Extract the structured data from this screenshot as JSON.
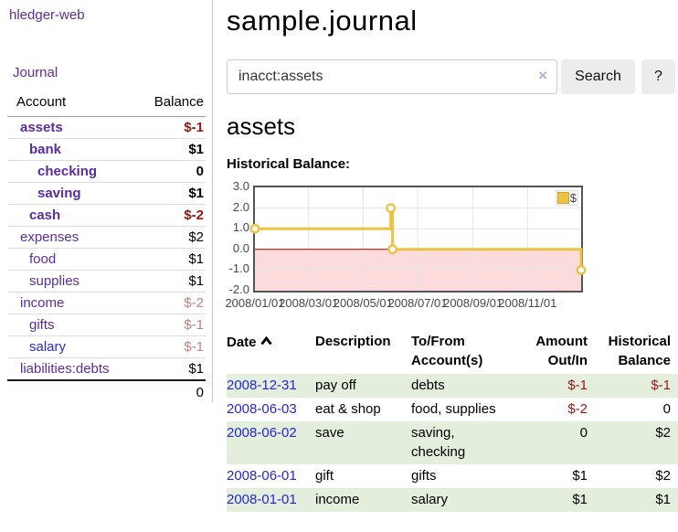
{
  "sidebar": {
    "app_title": "hledger-web",
    "nav": [
      {
        "label": "Journal"
      }
    ],
    "accounts_table": {
      "headers": [
        "Account",
        "Balance"
      ],
      "rows": [
        {
          "name": "assets",
          "level": 1,
          "bold": true,
          "balance": "$-1",
          "balance_style": "neg-strong"
        },
        {
          "name": "bank",
          "level": 2,
          "bold": true,
          "balance": "$1",
          "balance_style": ""
        },
        {
          "name": "checking",
          "level": 3,
          "bold": true,
          "balance": "0",
          "balance_style": ""
        },
        {
          "name": "saving",
          "level": 3,
          "bold": true,
          "balance": "$1",
          "balance_style": ""
        },
        {
          "name": "cash",
          "level": 2,
          "bold": true,
          "balance": "$-2",
          "balance_style": "neg-strong"
        },
        {
          "name": "expenses",
          "level": 1,
          "bold": false,
          "balance": "$2",
          "balance_style": ""
        },
        {
          "name": "food",
          "level": 2,
          "bold": false,
          "balance": "$1",
          "balance_style": ""
        },
        {
          "name": "supplies",
          "level": 2,
          "bold": false,
          "balance": "$1",
          "balance_style": ""
        },
        {
          "name": "income",
          "level": 1,
          "bold": false,
          "balance": "$-2",
          "balance_style": "neg-soft"
        },
        {
          "name": "gifts",
          "level": 2,
          "bold": false,
          "balance": "$-1",
          "balance_style": "neg-soft"
        },
        {
          "name": "salary",
          "level": 2,
          "bold": false,
          "balance": "$-1",
          "balance_style": "neg-soft",
          "link_color": "blue"
        },
        {
          "name": "liabilities:debts",
          "level": 1,
          "bold": false,
          "balance": "$1",
          "balance_style": ""
        }
      ],
      "total": "0"
    }
  },
  "header": {
    "title": "sample.journal"
  },
  "search": {
    "value": "inacct:assets",
    "clear_icon": "×",
    "button_label": "Search",
    "help_label": "?"
  },
  "account_page": {
    "heading": "assets",
    "chart_label": "Historical Balance:"
  },
  "chart_data": {
    "type": "line",
    "style": "step",
    "title": "Historical Balance:",
    "legend": [
      {
        "label": "$",
        "color": "#edc240"
      }
    ],
    "legend_position": "top-right",
    "grid": true,
    "ylim": [
      -2.0,
      3.0
    ],
    "yticks": [
      3.0,
      2.0,
      1.0,
      0.0,
      -1.0,
      -2.0
    ],
    "x_span_days": 365,
    "xticks": [
      {
        "label": "2008/01/01",
        "day": 0
      },
      {
        "label": "2008/03/01",
        "day": 60
      },
      {
        "label": "2008/05/01",
        "day": 121
      },
      {
        "label": "2008/07/01",
        "day": 182
      },
      {
        "label": "2008/09/01",
        "day": 244
      },
      {
        "label": "2008/11/01",
        "day": 305
      }
    ],
    "series": [
      {
        "name": "$",
        "color": "#edc240",
        "points": [
          {
            "date": "2008-01-01",
            "day": 0,
            "value": 1
          },
          {
            "date": "2008-06-01",
            "day": 152,
            "value": 2
          },
          {
            "date": "2008-06-03",
            "day": 154,
            "value": 0
          },
          {
            "date": "2008-12-31",
            "day": 365,
            "value": -1
          }
        ]
      }
    ],
    "zero_line_color": "#8b0000",
    "negative_region_color": "#fbdbdb",
    "grid_color": "#e4e4e4",
    "border_color": "#545454"
  },
  "transactions_table": {
    "headers": [
      {
        "key": "date",
        "label": "Date",
        "align": "left",
        "sorted": "ascending",
        "sort_icon": "chevron-up"
      },
      {
        "key": "description",
        "label": "Description",
        "align": "left"
      },
      {
        "key": "tofrom",
        "label": "To/From Account(s)",
        "align": "left"
      },
      {
        "key": "amount",
        "label": "Amount Out/In",
        "align": "right"
      },
      {
        "key": "balance",
        "label": "Historical Balance",
        "align": "right"
      }
    ],
    "rows": [
      {
        "date": "2008-12-31",
        "description": "pay off",
        "tofrom": "debts",
        "amount": "$-1",
        "balance": "$-1"
      },
      {
        "date": "2008-06-03",
        "description": "eat & shop",
        "tofrom": "food, supplies",
        "amount": "$-2",
        "balance": "0"
      },
      {
        "date": "2008-06-02",
        "description": "save",
        "tofrom": "saving, checking",
        "amount": "0",
        "balance": "$2"
      },
      {
        "date": "2008-06-01",
        "description": "gift",
        "tofrom": "gifts",
        "amount": "$1",
        "balance": "$2"
      },
      {
        "date": "2008-01-01",
        "description": "income",
        "tofrom": "salary",
        "amount": "$1",
        "balance": "$1"
      }
    ]
  },
  "colors": {
    "link_purple": "#5a2ca0",
    "link_blue": "#2626d2",
    "negative_strong": "#971616",
    "negative_soft": "#c5807f",
    "row_stripe_green": "#e3eedd",
    "series_gold": "#edc240",
    "negative_region_pink": "#fbdbdb",
    "zero_line_red": "#8b0000"
  }
}
